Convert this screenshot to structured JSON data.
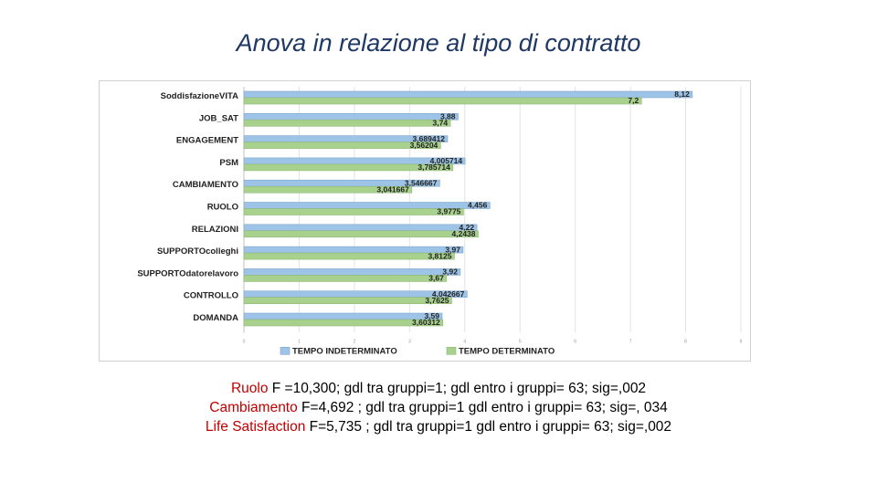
{
  "slide": {
    "title": "Anova in relazione al tipo di contratto"
  },
  "chart_data": {
    "type": "bar",
    "orientation": "horizontal",
    "categories": [
      "SoddisfazioneVITA",
      "JOB_SAT",
      "ENGAGEMENT",
      "PSM",
      "CAMBIAMENTO",
      "RUOLO",
      "RELAZIONI",
      "SUPPORTOcolleghi",
      "SUPPORTOdatorelavoro",
      "CONTROLLO",
      "DOMANDA"
    ],
    "series": [
      {
        "name": "TEMPO INDETERMINATO",
        "color": "#9dc3e6",
        "values": [
          8.12,
          3.88,
          3.689412,
          4.005714,
          3.546667,
          4.456,
          4.22,
          3.97,
          3.92,
          4.042667,
          3.59
        ],
        "labels": [
          "8,12",
          "3,88",
          "3,689412",
          "4,005714",
          "3,546667",
          "4,456",
          "4,22",
          "3,97",
          "3,92",
          "4,042667",
          "3,59"
        ]
      },
      {
        "name": "TEMPO DETERMINATO",
        "color": "#a9d18e",
        "values": [
          7.2,
          3.74,
          3.56204,
          3.785714,
          3.041667,
          3.9775,
          4.2438,
          3.8125,
          3.67,
          3.7625,
          3.60312
        ],
        "labels": [
          "7,2",
          "3,74",
          "3,56204",
          "3,785714",
          "3,041667",
          "3,9775",
          "4,2438",
          "3,8125",
          "3,67",
          "3,7625",
          "3,60312"
        ]
      }
    ],
    "xlim": [
      0,
      9
    ],
    "xticks": [
      "0",
      "1",
      "2",
      "3",
      "4",
      "5",
      "6",
      "7",
      "8",
      "9"
    ],
    "grid": true,
    "legend": "bottom",
    "title": "",
    "xlabel": "",
    "ylabel": ""
  },
  "stats": [
    {
      "label": "Ruolo",
      "text": "  F =10,300; gdl tra gruppi=1; gdl entro i gruppi= 63; sig=,002"
    },
    {
      "label": "Cambiamento",
      "text": "  F=4,692 ; gdl tra gruppi=1 gdl entro i gruppi= 63; sig=, 034"
    },
    {
      "label": "Life Satisfaction",
      "text": " F=5,735 ; gdl tra gruppi=1 gdl entro i gruppi= 63; sig=,002"
    }
  ]
}
